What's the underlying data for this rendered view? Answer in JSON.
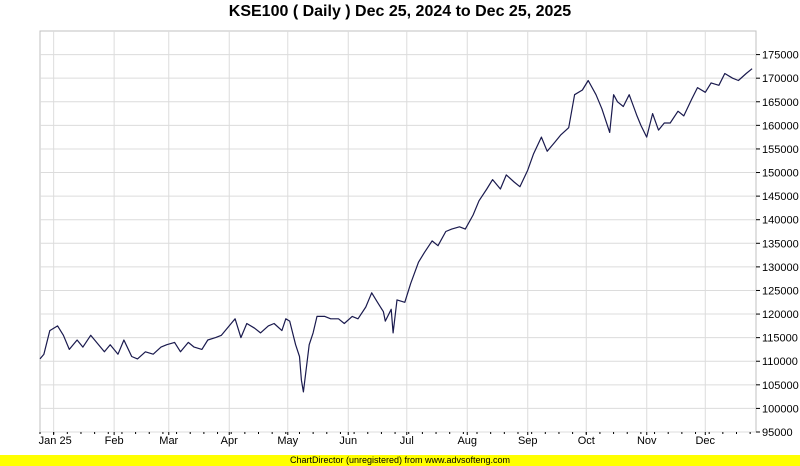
{
  "chart_data": {
    "type": "line",
    "title": "KSE100 ( Daily ) Dec 25, 2024 to Dec 25, 2025",
    "xlabel": "",
    "ylabel": "",
    "ylim": [
      95000,
      180000
    ],
    "y_ticks": [
      95000,
      100000,
      105000,
      110000,
      115000,
      120000,
      125000,
      130000,
      135000,
      140000,
      145000,
      150000,
      155000,
      160000,
      165000,
      170000,
      175000
    ],
    "x_tick_labels": [
      {
        "label": "Jan 25",
        "date": "2025-01-01"
      },
      {
        "label": "Feb",
        "date": "2025-02-01"
      },
      {
        "label": "Mar",
        "date": "2025-03-01"
      },
      {
        "label": "Apr",
        "date": "2025-04-01"
      },
      {
        "label": "May",
        "date": "2025-05-01"
      },
      {
        "label": "Jun",
        "date": "2025-06-01"
      },
      {
        "label": "Jul",
        "date": "2025-07-01"
      },
      {
        "label": "Aug",
        "date": "2025-08-01"
      },
      {
        "label": "Sep",
        "date": "2025-09-01"
      },
      {
        "label": "Oct",
        "date": "2025-10-01"
      },
      {
        "label": "Nov",
        "date": "2025-11-01"
      },
      {
        "label": "Dec",
        "date": "2025-12-01"
      }
    ],
    "grid": true,
    "series": [
      {
        "color": "#1a1a4e",
        "x": [
          "2024-12-25",
          "2024-12-27",
          "2024-12-30",
          "2025-01-01",
          "2025-01-03",
          "2025-01-06",
          "2025-01-09",
          "2025-01-13",
          "2025-01-16",
          "2025-01-20",
          "2025-01-23",
          "2025-01-27",
          "2025-01-30",
          "2025-02-03",
          "2025-02-06",
          "2025-02-10",
          "2025-02-13",
          "2025-02-17",
          "2025-02-21",
          "2025-02-25",
          "2025-02-28",
          "2025-03-04",
          "2025-03-07",
          "2025-03-11",
          "2025-03-14",
          "2025-03-18",
          "2025-03-21",
          "2025-03-25",
          "2025-03-28",
          "2025-04-01",
          "2025-04-04",
          "2025-04-07",
          "2025-04-10",
          "2025-04-14",
          "2025-04-17",
          "2025-04-21",
          "2025-04-24",
          "2025-04-28",
          "2025-04-30",
          "2025-05-02",
          "2025-05-05",
          "2025-05-07",
          "2025-05-08",
          "2025-05-09",
          "2025-05-12",
          "2025-05-14",
          "2025-05-16",
          "2025-05-20",
          "2025-05-23",
          "2025-05-27",
          "2025-05-30",
          "2025-06-03",
          "2025-06-06",
          "2025-06-10",
          "2025-06-13",
          "2025-06-16",
          "2025-06-19",
          "2025-06-20",
          "2025-06-23",
          "2025-06-24",
          "2025-06-26",
          "2025-06-30",
          "2025-07-03",
          "2025-07-07",
          "2025-07-10",
          "2025-07-14",
          "2025-07-17",
          "2025-07-21",
          "2025-07-24",
          "2025-07-28",
          "2025-07-31",
          "2025-08-04",
          "2025-08-07",
          "2025-08-11",
          "2025-08-14",
          "2025-08-18",
          "2025-08-21",
          "2025-08-25",
          "2025-08-28",
          "2025-09-01",
          "2025-09-04",
          "2025-09-08",
          "2025-09-11",
          "2025-09-15",
          "2025-09-18",
          "2025-09-22",
          "2025-09-25",
          "2025-09-29",
          "2025-10-02",
          "2025-10-06",
          "2025-10-09",
          "2025-10-13",
          "2025-10-15",
          "2025-10-17",
          "2025-10-20",
          "2025-10-23",
          "2025-10-27",
          "2025-10-29",
          "2025-11-01",
          "2025-11-04",
          "2025-11-07",
          "2025-11-10",
          "2025-11-13",
          "2025-11-17",
          "2025-11-20",
          "2025-11-24",
          "2025-11-27",
          "2025-12-01",
          "2025-12-04",
          "2025-12-08",
          "2025-12-11",
          "2025-12-15",
          "2025-12-18",
          "2025-12-22",
          "2025-12-25"
        ],
        "values": [
          110500,
          111500,
          116500,
          117000,
          117500,
          115500,
          112500,
          114500,
          113000,
          115500,
          114000,
          112000,
          113500,
          111500,
          114500,
          111000,
          110500,
          112000,
          111500,
          113000,
          113500,
          114000,
          112000,
          114000,
          113000,
          112500,
          114500,
          115000,
          115500,
          117500,
          119000,
          115000,
          118000,
          117000,
          116000,
          117500,
          118000,
          116500,
          119000,
          118500,
          113500,
          111000,
          106000,
          103500,
          113500,
          116000,
          119500,
          119500,
          119000,
          119000,
          118000,
          119500,
          119000,
          121500,
          124500,
          122500,
          120500,
          118500,
          121000,
          116000,
          123000,
          122500,
          126500,
          131000,
          133000,
          135500,
          134500,
          137500,
          138000,
          138500,
          138000,
          141000,
          144000,
          146500,
          148500,
          146500,
          149500,
          148000,
          147000,
          150500,
          154000,
          157500,
          154500,
          156500,
          158000,
          159500,
          166500,
          167500,
          169500,
          166500,
          163500,
          158500,
          166500,
          165000,
          164000,
          166500,
          162000,
          160000,
          157500,
          162500,
          159000,
          160500,
          160500,
          163000,
          162000,
          165500,
          168000,
          167000,
          169000,
          168500,
          171000,
          170000,
          169500,
          171000,
          172000
        ]
      }
    ]
  },
  "footer": {
    "text": "ChartDirector (unregistered) from www.advsofteng.com",
    "color": "#ffff00"
  }
}
